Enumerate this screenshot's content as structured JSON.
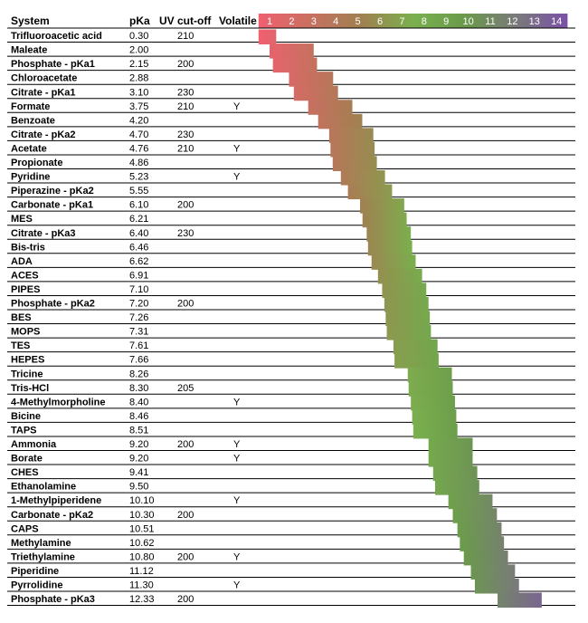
{
  "headers": {
    "system": "System",
    "pka": "pKa",
    "uv": "UV cut-off",
    "volatile": "Volatile"
  },
  "chart_data": {
    "type": "bar",
    "title": "",
    "x_ticks": [
      "1",
      "2",
      "3",
      "4",
      "5",
      "6",
      "7",
      "8",
      "9",
      "10",
      "11",
      "12",
      "13",
      "14"
    ],
    "xlim": [
      1,
      14
    ],
    "range_note": "bar spans pKa - 1 to pKa + 1",
    "color_scale": [
      "#f06070",
      "#c87060",
      "#a08050",
      "#7ab04e",
      "#6a9a4a",
      "#7a7a7a",
      "#7a50a8"
    ],
    "rows": [
      {
        "system": "Trifluoroacetic acid",
        "pka": "0.30",
        "uv": "210",
        "volatile": "",
        "value": 0.3
      },
      {
        "system": "Maleate",
        "pka": "2.00",
        "uv": "",
        "volatile": "",
        "value": 2.0
      },
      {
        "system": "Phosphate - pKa1",
        "pka": "2.15",
        "uv": "200",
        "volatile": "",
        "value": 2.15
      },
      {
        "system": "Chloroacetate",
        "pka": "2.88",
        "uv": "",
        "volatile": "",
        "value": 2.88
      },
      {
        "system": "Citrate - pKa1",
        "pka": "3.10",
        "uv": "230",
        "volatile": "",
        "value": 3.1
      },
      {
        "system": "Formate",
        "pka": "3.75",
        "uv": "210",
        "volatile": "Y",
        "value": 3.75
      },
      {
        "system": "Benzoate",
        "pka": "4.20",
        "uv": "",
        "volatile": "",
        "value": 4.2
      },
      {
        "system": "Citrate - pKa2",
        "pka": "4.70",
        "uv": "230",
        "volatile": "",
        "value": 4.7
      },
      {
        "system": "Acetate",
        "pka": "4.76",
        "uv": "210",
        "volatile": "Y",
        "value": 4.76
      },
      {
        "system": "Propionate",
        "pka": "4.86",
        "uv": "",
        "volatile": "",
        "value": 4.86
      },
      {
        "system": "Pyridine",
        "pka": "5.23",
        "uv": "",
        "volatile": "Y",
        "value": 5.23
      },
      {
        "system": "Piperazine - pKa2",
        "pka": "5.55",
        "uv": "",
        "volatile": "",
        "value": 5.55
      },
      {
        "system": "Carbonate - pKa1",
        "pka": "6.10",
        "uv": "200",
        "volatile": "",
        "value": 6.1
      },
      {
        "system": "MES",
        "pka": "6.21",
        "uv": "",
        "volatile": "",
        "value": 6.21
      },
      {
        "system": "Citrate - pKa3",
        "pka": "6.40",
        "uv": "230",
        "volatile": "",
        "value": 6.4
      },
      {
        "system": "Bis-tris",
        "pka": "6.46",
        "uv": "",
        "volatile": "",
        "value": 6.46
      },
      {
        "system": "ADA",
        "pka": "6.62",
        "uv": "",
        "volatile": "",
        "value": 6.62
      },
      {
        "system": "ACES",
        "pka": "6.91",
        "uv": "",
        "volatile": "",
        "value": 6.91
      },
      {
        "system": "PIPES",
        "pka": "7.10",
        "uv": "",
        "volatile": "",
        "value": 7.1
      },
      {
        "system": "Phosphate - pKa2",
        "pka": "7.20",
        "uv": "200",
        "volatile": "",
        "value": 7.2
      },
      {
        "system": "BES",
        "pka": "7.26",
        "uv": "",
        "volatile": "",
        "value": 7.26
      },
      {
        "system": "MOPS",
        "pka": "7.31",
        "uv": "",
        "volatile": "",
        "value": 7.31
      },
      {
        "system": "TES",
        "pka": "7.61",
        "uv": "",
        "volatile": "",
        "value": 7.61
      },
      {
        "system": "HEPES",
        "pka": "7.66",
        "uv": "",
        "volatile": "",
        "value": 7.66
      },
      {
        "system": "Tricine",
        "pka": "8.26",
        "uv": "",
        "volatile": "",
        "value": 8.26
      },
      {
        "system": "Tris-HCl",
        "pka": "8.30",
        "uv": "205",
        "volatile": "",
        "value": 8.3
      },
      {
        "system": "4-Methylmorpholine",
        "pka": "8.40",
        "uv": "",
        "volatile": "Y",
        "value": 8.4
      },
      {
        "system": "Bicine",
        "pka": "8.46",
        "uv": "",
        "volatile": "",
        "value": 8.46
      },
      {
        "system": "TAPS",
        "pka": "8.51",
        "uv": "",
        "volatile": "",
        "value": 8.51
      },
      {
        "system": "Ammonia",
        "pka": "9.20",
        "uv": "200",
        "volatile": "Y",
        "value": 9.2
      },
      {
        "system": "Borate",
        "pka": "9.20",
        "uv": "",
        "volatile": "Y",
        "value": 9.2
      },
      {
        "system": "CHES",
        "pka": "9.41",
        "uv": "",
        "volatile": "",
        "value": 9.41
      },
      {
        "system": "Ethanolamine",
        "pka": "9.50",
        "uv": "",
        "volatile": "",
        "value": 9.5
      },
      {
        "system": "1-Methylpiperidene",
        "pka": "10.10",
        "uv": "",
        "volatile": "Y",
        "value": 10.1
      },
      {
        "system": "Carbonate - pKa2",
        "pka": "10.30",
        "uv": "200",
        "volatile": "",
        "value": 10.3
      },
      {
        "system": "CAPS",
        "pka": "10.51",
        "uv": "",
        "volatile": "",
        "value": 10.51
      },
      {
        "system": "Methylamine",
        "pka": "10.62",
        "uv": "",
        "volatile": "",
        "value": 10.62
      },
      {
        "system": "Triethylamine",
        "pka": "10.80",
        "uv": "200",
        "volatile": "Y",
        "value": 10.8
      },
      {
        "system": "Piperidine",
        "pka": "11.12",
        "uv": "",
        "volatile": "",
        "value": 11.12
      },
      {
        "system": "Pyrrolidine",
        "pka": "11.30",
        "uv": "",
        "volatile": "Y",
        "value": 11.3
      },
      {
        "system": "Phosphate - pKa3",
        "pka": "12.33",
        "uv": "200",
        "volatile": "",
        "value": 12.33
      }
    ]
  }
}
